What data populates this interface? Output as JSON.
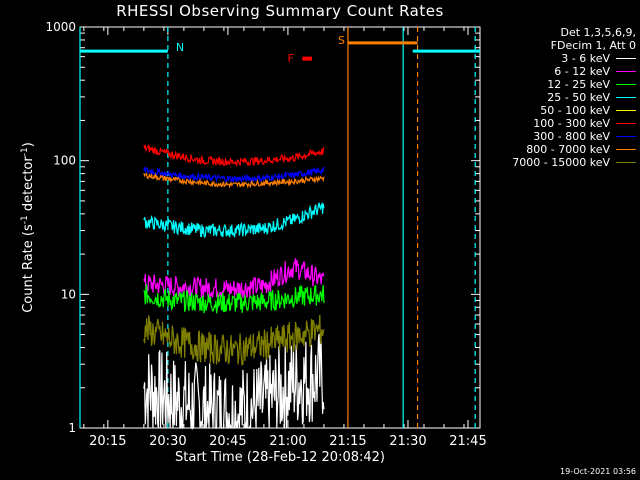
{
  "chart_data": {
    "type": "line",
    "title": "RHESSI Observing Summary Count Rates",
    "xlabel": "Start Time (28-Feb-12 20:08:42)",
    "ylabel_parts": [
      "Count Rate (s",
      "-1",
      " detector",
      "-1",
      ")"
    ],
    "yscale": "log",
    "ylim": [
      1,
      1000
    ],
    "xlim_minutes": [
      20.134,
      21.8
    ],
    "x_tick_labels": [
      "20:15",
      "20:30",
      "20:45",
      "21:00",
      "21:15",
      "21:30",
      "21:45"
    ],
    "x_tick_values": [
      20.25,
      20.5,
      20.75,
      21.0,
      21.25,
      21.5,
      21.75
    ],
    "y_tick_labels": [
      "1",
      "10",
      "100",
      "1000"
    ],
    "y_tick_values": [
      1,
      10,
      100,
      1000
    ],
    "legend_header": [
      "Det 1,3,5,6,9,",
      "FDecim 1, Att 0"
    ],
    "series": [
      {
        "name": "3 - 6 keV",
        "color": "#ffffff",
        "level": [
          2.0,
          1.6,
          1.4,
          1.3,
          1.5,
          2.2,
          2.5
        ],
        "noise": 0.35
      },
      {
        "name": "6 - 12 keV",
        "color": "#ff00ff",
        "level": [
          12.0,
          11.5,
          11.2,
          11.0,
          11.5,
          16.0,
          12.5
        ],
        "noise": 0.08
      },
      {
        "name": "12 - 25 keV",
        "color": "#00ff00",
        "level": [
          10.0,
          9.0,
          8.7,
          8.6,
          8.8,
          9.5,
          10.0
        ],
        "noise": 0.08
      },
      {
        "name": "25 - 50 keV",
        "color": "#00ffff",
        "level": [
          35.0,
          32.0,
          30.0,
          30.0,
          31.0,
          36.0,
          45.0
        ],
        "noise": 0.05
      },
      {
        "name": "50 - 100 keV",
        "color": "#ffff00",
        "level": [],
        "noise": 0
      },
      {
        "name": "100 - 300 keV",
        "color": "#ff0000",
        "level": [
          125.0,
          110.0,
          100.0,
          98.0,
          100.0,
          105.0,
          118.0
        ],
        "noise": 0.03
      },
      {
        "name": "300 - 800 keV",
        "color": "#0000ff",
        "level": [
          85.0,
          78.0,
          75.0,
          73.0,
          74.0,
          78.0,
          85.0
        ],
        "noise": 0.025
      },
      {
        "name": "800 - 7000 keV",
        "color": "#ff8000",
        "level": [
          78.0,
          72.0,
          68.0,
          66.0,
          68.0,
          70.0,
          74.0
        ],
        "noise": 0.02
      },
      {
        "name": "7000 - 15000 keV",
        "color": "#808000",
        "level": [
          5.5,
          4.5,
          4.0,
          3.8,
          4.2,
          4.8,
          5.5
        ],
        "noise": 0.12
      }
    ],
    "data_window": [
      20.4,
      21.15
    ],
    "annotations": [
      {
        "label": "N",
        "color": "#00ffff",
        "x": 20.5
      },
      {
        "label": "F",
        "color": "#ff0000",
        "x": 21.04
      },
      {
        "label": "S",
        "color": "#ff8000",
        "x": 21.25
      }
    ],
    "night_bars": [
      {
        "color": "#00ffff",
        "x0": 20.134,
        "x1": 20.5,
        "y": 660
      },
      {
        "color": "#00ffff",
        "x0": 21.52,
        "x1": 21.8,
        "y": 660
      },
      {
        "color": "#ff8000",
        "x0": 21.25,
        "x1": 21.54,
        "y": 760
      }
    ],
    "flare_bar": {
      "color": "#ff0000",
      "x0": 21.06,
      "x1": 21.1,
      "y": 580
    },
    "vertical_lines": [
      {
        "x": 20.134,
        "color": "#00ffff",
        "dashed": false
      },
      {
        "x": 20.5,
        "color": "#00ffff",
        "dashed": true
      },
      {
        "x": 21.25,
        "color": "#ff8000",
        "dashed": false
      },
      {
        "x": 21.48,
        "color": "#00ffff",
        "dashed": false
      },
      {
        "x": 21.54,
        "color": "#ff8000",
        "dashed": true
      },
      {
        "x": 21.78,
        "color": "#00ffff",
        "dashed": true
      }
    ]
  },
  "footer": "19-Oct-2021 03:56"
}
